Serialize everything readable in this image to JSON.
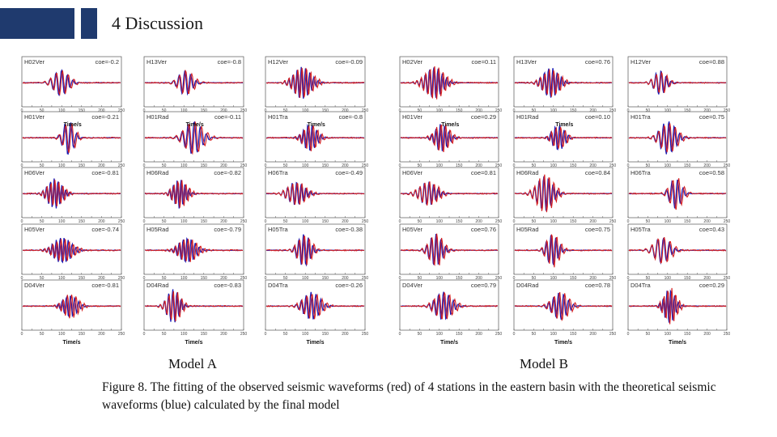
{
  "header": {
    "title": "4  Discussion"
  },
  "figure": {
    "axis_label": "Time/s",
    "ticks_a": [
      "0",
      "50",
      "100",
      "150",
      "200",
      "250"
    ],
    "ticks_b": [
      "0",
      "50",
      "100",
      "150",
      "200",
      "250"
    ],
    "model_a_label": "Model A",
    "model_b_label": "Model B",
    "model_a": [
      [
        {
          "label": "H02Ver",
          "coe": "coe=-0.2"
        },
        {
          "label": "H13Ver",
          "coe": "coe=-0.8"
        },
        {
          "label": "H12Ver",
          "coe": "coe=-0.09"
        }
      ],
      [
        {
          "label": "H01Ver",
          "coe": "coe=-0.21"
        },
        {
          "label": "H01Rad",
          "coe": "coe=-0.11"
        },
        {
          "label": "H01Tra",
          "coe": "coe=-0.8"
        }
      ],
      [
        {
          "label": "H06Ver",
          "coe": "coe=-0.81"
        },
        {
          "label": "H06Rad",
          "coe": "coe=-0.82"
        },
        {
          "label": "H06Tra",
          "coe": "coe=-0.49"
        }
      ],
      [
        {
          "label": "H05Ver",
          "coe": "coe=-0.74"
        },
        {
          "label": "H05Rad",
          "coe": "coe=-0.79"
        },
        {
          "label": "H05Tra",
          "coe": "coe=-0.38"
        }
      ],
      [
        {
          "label": "D04Ver",
          "coe": "coe=-0.81"
        },
        {
          "label": "D04Rad",
          "coe": "coe=-0.83"
        },
        {
          "label": "D04Tra",
          "coe": "coe=-0.26"
        }
      ]
    ],
    "model_b": [
      [
        {
          "label": "H02Ver",
          "coe": "coe=0.11"
        },
        {
          "label": "H13Ver",
          "coe": "coe=0.76"
        },
        {
          "label": "H12Ver",
          "coe": "coe=0.88"
        }
      ],
      [
        {
          "label": "H01Ver",
          "coe": "coe=0.29"
        },
        {
          "label": "H01Rad",
          "coe": "coe=0.10"
        },
        {
          "label": "H01Tra",
          "coe": "coe=0.75"
        }
      ],
      [
        {
          "label": "H06Ver",
          "coe": "coe=0.81"
        },
        {
          "label": "H06Rad",
          "coe": "coe=0.84"
        },
        {
          "label": "H06Tra",
          "coe": "coe=0.58"
        }
      ],
      [
        {
          "label": "H05Ver",
          "coe": "coe=0.76"
        },
        {
          "label": "H05Rad",
          "coe": "coe=0.75"
        },
        {
          "label": "H05Tra",
          "coe": "coe=0.43"
        }
      ],
      [
        {
          "label": "D04Ver",
          "coe": "coe=0.79"
        },
        {
          "label": "D04Rad",
          "coe": "coe=0.78"
        },
        {
          "label": "D04Tra",
          "coe": "coe=0.29"
        }
      ]
    ],
    "observed_color": "#d62020",
    "theoretical_color": "#1a1ab4",
    "caption": "Figure 8. The fitting of the observed seismic waveforms (red) of 4 stations in the eastern basin with the theoretical seismic waveforms (blue) calculated by the final  model"
  }
}
